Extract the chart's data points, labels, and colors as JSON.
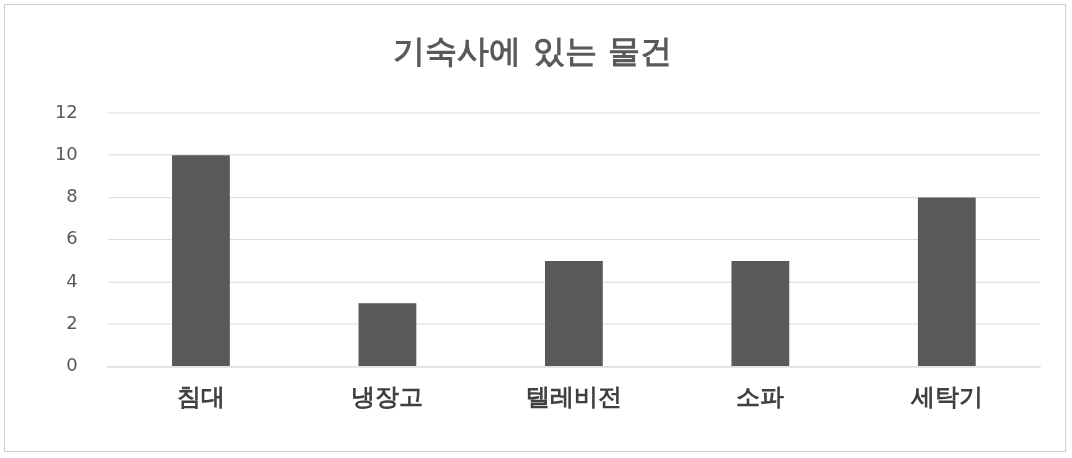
{
  "chart_data": {
    "type": "bar",
    "title": "기숙사에 있는 물건",
    "categories": [
      "침대",
      "냉장고",
      "텔레비전",
      "소파",
      "세탁기"
    ],
    "values": [
      10,
      3,
      5,
      5,
      8
    ],
    "color": "#595959",
    "ylim": [
      0,
      12
    ],
    "yticks": [
      0,
      2,
      4,
      6,
      8,
      10,
      12
    ],
    "grid": "y",
    "legend": false
  }
}
